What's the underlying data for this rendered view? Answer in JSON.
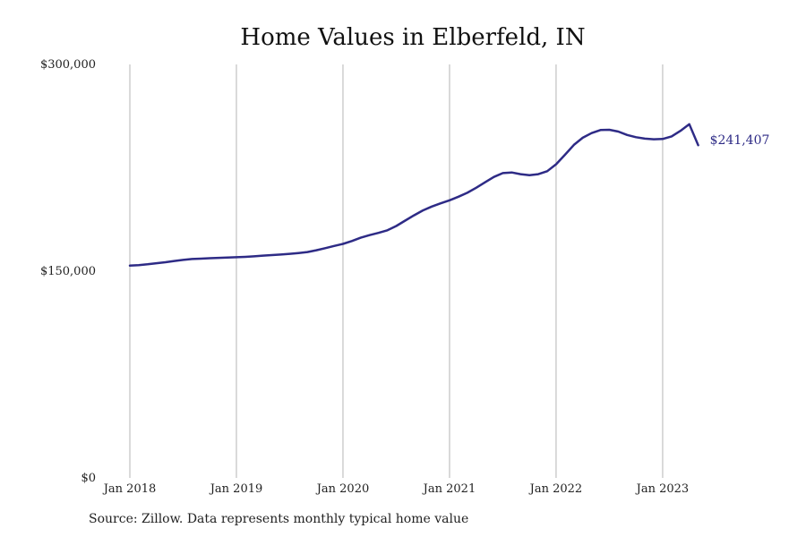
{
  "chart_data": {
    "type": "line",
    "title": "Home Values in Elberfeld, IN",
    "xlabel": "",
    "ylabel": "",
    "source": "Source: Zillow. Data represents monthly typical home value",
    "xlim": [
      "2018-01",
      "2023-05"
    ],
    "ylim": [
      0,
      300000
    ],
    "x_ticks": [
      {
        "date": "2018-01",
        "label": "Jan 2018"
      },
      {
        "date": "2019-01",
        "label": "Jan 2019"
      },
      {
        "date": "2020-01",
        "label": "Jan 2020"
      },
      {
        "date": "2021-01",
        "label": "Jan 2021"
      },
      {
        "date": "2022-01",
        "label": "Jan 2022"
      },
      {
        "date": "2023-01",
        "label": "Jan 2023"
      }
    ],
    "y_ticks": [
      {
        "value": 0,
        "label": "$0"
      },
      {
        "value": 150000,
        "label": "$150,000"
      },
      {
        "value": 300000,
        "label": "$300,000"
      }
    ],
    "grid": "vertical",
    "line_color": "#2e2b86",
    "end_label": "$241,407",
    "series": [
      {
        "x": [
          "2018-01",
          "2018-02",
          "2018-03",
          "2018-04",
          "2018-05",
          "2018-06",
          "2018-07",
          "2018-08",
          "2018-09",
          "2018-10",
          "2018-11",
          "2018-12",
          "2019-01",
          "2019-02",
          "2019-03",
          "2019-04",
          "2019-05",
          "2019-06",
          "2019-07",
          "2019-08",
          "2019-09",
          "2019-10",
          "2019-11",
          "2019-12",
          "2020-01",
          "2020-02",
          "2020-03",
          "2020-04",
          "2020-05",
          "2020-06",
          "2020-07",
          "2020-08",
          "2020-09",
          "2020-10",
          "2020-11",
          "2020-12",
          "2021-01",
          "2021-02",
          "2021-03",
          "2021-04",
          "2021-05",
          "2021-06",
          "2021-07",
          "2021-08",
          "2021-09",
          "2021-10",
          "2021-11",
          "2021-12",
          "2022-01",
          "2022-02",
          "2022-03",
          "2022-04",
          "2022-05",
          "2022-06",
          "2022-07",
          "2022-08",
          "2022-09",
          "2022-10",
          "2022-11",
          "2022-12",
          "2023-01",
          "2023-02",
          "2023-03",
          "2023-04",
          "2023-05"
        ],
        "values": [
          154000,
          154400,
          155000,
          155800,
          156500,
          157400,
          158200,
          158800,
          159100,
          159400,
          159700,
          159900,
          160100,
          160400,
          160800,
          161300,
          161700,
          162100,
          162600,
          163200,
          163900,
          165200,
          166700,
          168300,
          169800,
          171900,
          174300,
          176200,
          177800,
          179700,
          182800,
          186700,
          190500,
          194100,
          196900,
          199200,
          201400,
          204000,
          206900,
          210500,
          214500,
          218400,
          221200,
          221600,
          220400,
          219600,
          220400,
          222500,
          227600,
          234500,
          241600,
          246800,
          250200,
          252400,
          252600,
          251300,
          248800,
          247200,
          246200,
          245700,
          245900,
          247800,
          251800,
          256600,
          241407
        ]
      }
    ]
  }
}
